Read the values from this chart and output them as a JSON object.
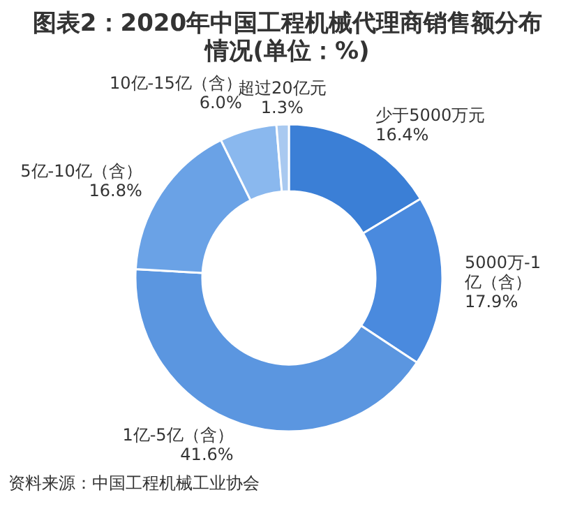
{
  "chart_data": {
    "type": "donut",
    "title": "图表2：2020年中国工程机械代理商销售额分布情况(单位：%)",
    "categories": [
      "少于5000万元",
      "5000万-1亿（含）",
      "1亿-5亿（含）",
      "5亿-10亿（含）",
      "10亿-15亿（含）",
      "超过20亿元"
    ],
    "values": [
      16.4,
      17.9,
      41.6,
      16.8,
      6.0,
      1.3
    ],
    "value_labels": [
      "16.4%",
      "17.9%",
      "41.6%",
      "16.8%",
      "6.0%",
      "1.3%"
    ],
    "colors": [
      "#3b7fd6",
      "#4a8ade",
      "#5b96e0",
      "#6aa2e6",
      "#8ab8ee",
      "#a9c9f0"
    ],
    "annotations": [
      "资料来源：中国工程机械工业协会"
    ]
  }
}
